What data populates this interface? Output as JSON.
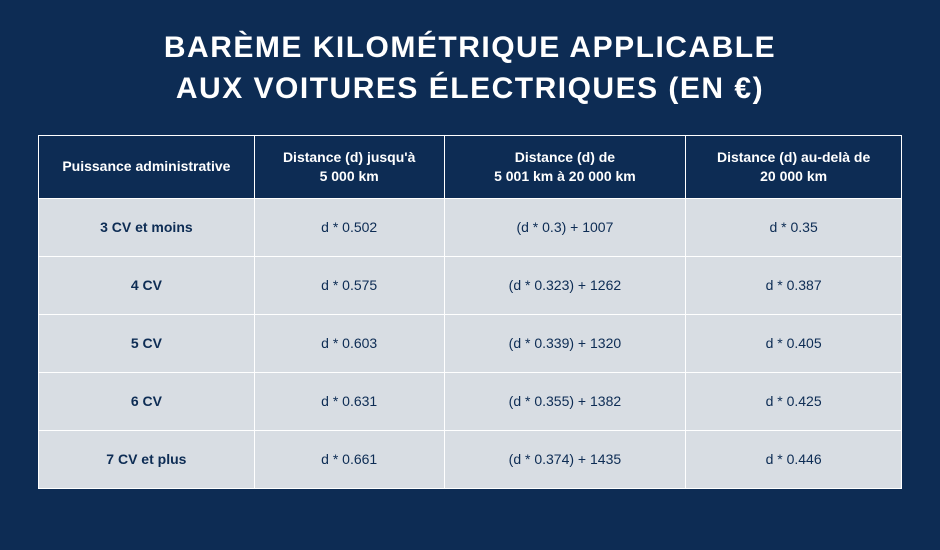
{
  "title_line1": "BARÈME KILOMÉTRIQUE APPLICABLE",
  "title_line2": "AUX VOITURES ÉLECTRIQUES (EN €)",
  "columns": [
    "Puissance administrative",
    "Distance (d) jusqu'à\n5 000 km",
    "Distance (d) de\n5 001 km à 20 000 km",
    "Distance (d) au-delà de\n20 000 km"
  ],
  "rows": [
    {
      "label": "3 CV et moins",
      "c1": "d * 0.502",
      "c2": "(d * 0.3) + 1007",
      "c3": "d * 0.35"
    },
    {
      "label": "4 CV",
      "c1": "d * 0.575",
      "c2": "(d * 0.323) + 1262",
      "c3": "d * 0.387"
    },
    {
      "label": "5 CV",
      "c1": "d * 0.603",
      "c2": "(d * 0.339) + 1320",
      "c3": "d * 0.405"
    },
    {
      "label": "6 CV",
      "c1": "d * 0.631",
      "c2": "(d * 0.355) + 1382",
      "c3": "d * 0.425"
    },
    {
      "label": "7 CV et plus",
      "c1": "d * 0.661",
      "c2": "(d * 0.374) + 1435",
      "c3": "d * 0.446"
    }
  ],
  "style": {
    "background_color": "#0d2c54",
    "cell_background": "#d8dde3",
    "border_color": "#ffffff",
    "text_color_light": "#ffffff",
    "text_color_dark": "#0d2c54",
    "title_fontsize": 30,
    "header_fontsize": 14,
    "cell_fontsize": 14,
    "col_widths_pct": [
      25,
      22,
      28,
      25
    ]
  }
}
